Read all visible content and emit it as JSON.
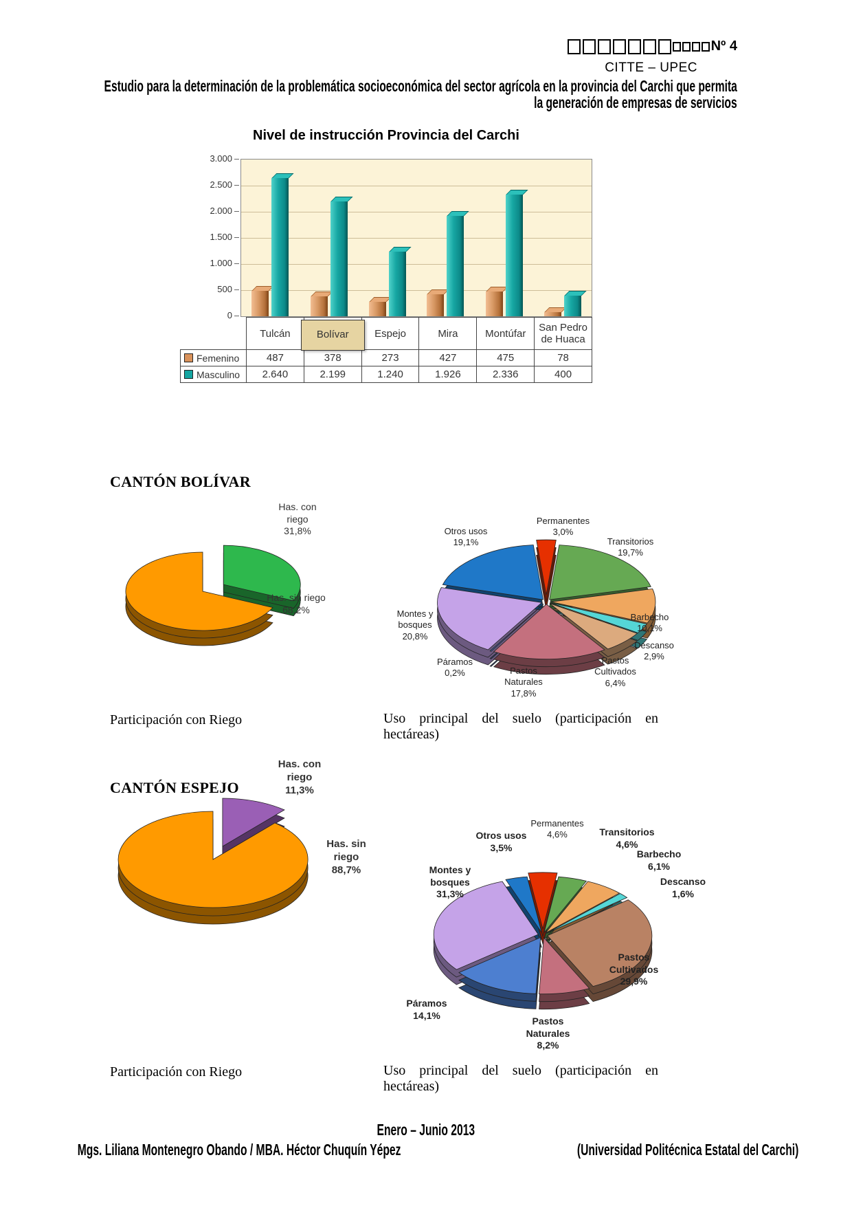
{
  "page": {
    "header": {
      "boxes_large": 7,
      "boxes_small": 4,
      "number_label": "Nº 4",
      "org": "CITTE – UPEC",
      "study_line1": "Estudio para la determinación de la problemática socioeconómica del sector agrícola en la provincia del Carchi que permita",
      "study_line2": "la generación de empresas de servicios"
    },
    "footer": {
      "period": "Enero – Junio 2013",
      "authors": "Mgs. Liliana Montenegro Obando / MBA. Héctor Chuquín Yépez",
      "institution": "(Universidad Politécnica Estatal del Carchi)"
    }
  },
  "sections": {
    "bolivar": {
      "heading": "CANTÓN BOLÍVAR",
      "caption_left": "Participación con Riego",
      "caption_right": "Uso principal del suelo (participación en hectáreas)"
    },
    "espejo": {
      "heading": "CANTÓN ESPEJO",
      "caption_left": "Participación con Riego",
      "caption_right": "Uso principal del suelo (participación en hectáreas)"
    }
  },
  "chart_data": [
    {
      "id": "nivel-instruccion",
      "type": "bar",
      "title": "Nivel de instrucción Provincia del Carchi",
      "categories": [
        "Tulcán",
        "Bolívar",
        "Espejo",
        "Mira",
        "Montúfar",
        "San Pedro de Huaca"
      ],
      "highlighted_category": "Bolívar",
      "series": [
        {
          "name": "Femenino",
          "color": "#d9925b",
          "values": [
            487,
            378,
            273,
            427,
            475,
            78
          ],
          "display": [
            "487",
            "378",
            "273",
            "427",
            "475",
            "78"
          ]
        },
        {
          "name": "Masculino",
          "color": "#14a5a1",
          "values": [
            2640,
            2199,
            1240,
            1926,
            2336,
            400
          ],
          "display": [
            "2.640",
            "2.199",
            "1.240",
            "1.926",
            "2.336",
            "400"
          ]
        }
      ],
      "ylim": [
        0,
        3000
      ],
      "yticks": [
        "3.000",
        "2.500",
        "2.000",
        "1.500",
        "1.000",
        "500",
        "0"
      ],
      "grid": true,
      "legend_position": "table-left"
    },
    {
      "id": "bolivar-riego",
      "type": "pie",
      "title": "Participación con Riego",
      "slices": [
        {
          "label": "Has. con riego",
          "pct": "31,8%",
          "value": 31.8,
          "color": "#2eb84d",
          "exploded": true
        },
        {
          "label": "Has. sin riego",
          "pct": "68,2%",
          "value": 68.2,
          "color": "#ff9a00"
        }
      ]
    },
    {
      "id": "bolivar-uso-suelo",
      "type": "pie",
      "title": "Uso principal del suelo (participación en hectáreas)",
      "slices": [
        {
          "label": "Permanentes",
          "pct": "3,0%",
          "value": 3.0,
          "color": "#e63000",
          "exploded": true
        },
        {
          "label": "Transitorios",
          "pct": "19,7%",
          "value": 19.7,
          "color": "#66a953"
        },
        {
          "label": "Barbecho",
          "pct": "10,1%",
          "value": 10.1,
          "color": "#efa75f"
        },
        {
          "label": "Descanso",
          "pct": "2,9%",
          "value": 2.9,
          "color": "#55d6d6"
        },
        {
          "label": "Pastos Cultivados",
          "pct": "6,4%",
          "value": 6.4,
          "color": "#dcaa7e"
        },
        {
          "label": "Pastos Naturales",
          "pct": "17,8%",
          "value": 17.8,
          "color": "#c4707e"
        },
        {
          "label": "Páramos",
          "pct": "0,2%",
          "value": 0.2,
          "color": "#4d7fd0"
        },
        {
          "label": "Montes y bosques",
          "pct": "20,8%",
          "value": 20.8,
          "color": "#c5a3e8"
        },
        {
          "label": "Otros usos",
          "pct": "19,1%",
          "value": 19.1,
          "color": "#1f78c8"
        }
      ]
    },
    {
      "id": "espejo-riego",
      "type": "pie",
      "title": "Participación con Riego",
      "slices": [
        {
          "label": "Has. con riego",
          "pct": "11,3%",
          "value": 11.3,
          "color": "#9a5fb5",
          "exploded": true
        },
        {
          "label": "Has. sin riego",
          "pct": "88,7%",
          "value": 88.7,
          "color": "#ff9a00"
        }
      ]
    },
    {
      "id": "espejo-uso-suelo",
      "type": "pie",
      "title": "Uso principal del suelo (participación en hectáreas)",
      "slices": [
        {
          "label": "Permanentes",
          "pct": "4,6%",
          "value": 4.6,
          "color": "#e63000",
          "exploded": true
        },
        {
          "label": "Transitorios",
          "pct": "4,6%",
          "value": 4.6,
          "color": "#66a953"
        },
        {
          "label": "Barbecho",
          "pct": "6,1%",
          "value": 6.1,
          "color": "#efa75f"
        },
        {
          "label": "Descanso",
          "pct": "1,6%",
          "value": 1.6,
          "color": "#55d6d6"
        },
        {
          "label": "Pastos Cultivados",
          "pct": "29,9%",
          "value": 29.9,
          "color": "#b98264"
        },
        {
          "label": "Pastos Naturales",
          "pct": "8,2%",
          "value": 8.2,
          "color": "#c4707e"
        },
        {
          "label": "Páramos",
          "pct": "14,1%",
          "value": 14.1,
          "color": "#4d7fd0"
        },
        {
          "label": "Montes y bosques",
          "pct": "31,3%",
          "value": 31.3,
          "color": "#c5a3e8"
        },
        {
          "label": "Otros usos",
          "pct": "3,5%",
          "value": 3.5,
          "color": "#1f78c8"
        }
      ]
    }
  ]
}
